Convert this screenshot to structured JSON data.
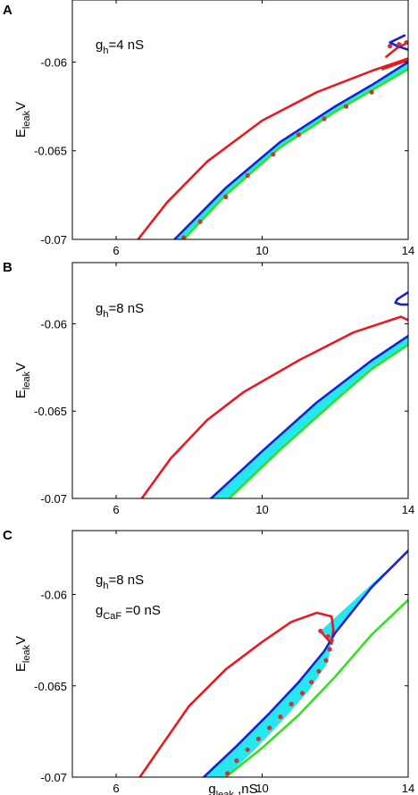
{
  "figure": {
    "panels": [
      "A",
      "B",
      "C"
    ]
  },
  "chart_data": [
    {
      "panel": "A",
      "type": "line",
      "annotations": [
        {
          "main": "g",
          "sub": "h",
          "rest": "=4 nS"
        }
      ],
      "ylabel": {
        "main": "E",
        "sub": "leak",
        "rest": "V"
      },
      "xlabel": null,
      "xlim": [
        4.8,
        14
      ],
      "ylim": [
        -0.07,
        -0.0565
      ],
      "xticks": [
        6,
        10,
        14
      ],
      "yticks": [
        -0.06,
        -0.065,
        -0.07
      ],
      "ytick_labels": [
        "-0.06",
        "-0.065",
        "-0.07"
      ],
      "colors": {
        "red": "#e8191f",
        "blue": "#1b21d1",
        "green": "#35e021",
        "fill": "#26e6ef",
        "dots": "#cc3333"
      },
      "band": {
        "upper": [
          [
            7.6,
            -0.07
          ],
          [
            9.0,
            -0.0671
          ],
          [
            10.5,
            -0.0645
          ],
          [
            12.0,
            -0.0625
          ],
          [
            13.0,
            -0.0613
          ],
          [
            14.0,
            -0.06
          ]
        ],
        "lower": [
          [
            7.85,
            -0.07
          ],
          [
            9.0,
            -0.0675
          ],
          [
            10.5,
            -0.0648
          ],
          [
            12.0,
            -0.0628
          ],
          [
            13.0,
            -0.0616
          ],
          [
            14.0,
            -0.0604
          ]
        ]
      },
      "series": [
        {
          "color": "red",
          "points": [
            [
              6.6,
              -0.07
            ],
            [
              7.4,
              -0.0679
            ],
            [
              8.5,
              -0.0656
            ],
            [
              10.0,
              -0.0633
            ],
            [
              11.5,
              -0.0617
            ],
            [
              13.0,
              -0.0605
            ],
            [
              14.0,
              -0.0598
            ]
          ]
        },
        {
          "color": "red",
          "points": [
            [
              13.4,
              -0.0597
            ],
            [
              13.7,
              -0.0592
            ],
            [
              14.0,
              -0.0589
            ]
          ]
        },
        {
          "color": "red",
          "points": [
            [
              13.3,
              -0.0604
            ],
            [
              13.7,
              -0.0601
            ],
            [
              14.0,
              -0.0599
            ]
          ]
        },
        {
          "color": "blue",
          "points": [
            [
              13.9,
              -0.0585
            ],
            [
              13.7,
              -0.0587
            ],
            [
              13.5,
              -0.0589
            ],
            [
              13.7,
              -0.0591
            ],
            [
              14.0,
              -0.0593
            ]
          ]
        },
        {
          "color": "blue",
          "points": [
            [
              7.6,
              -0.07
            ],
            [
              9.0,
              -0.0671
            ],
            [
              10.5,
              -0.0645
            ],
            [
              12.0,
              -0.0625
            ],
            [
              13.0,
              -0.0613
            ],
            [
              14.0,
              -0.06
            ]
          ]
        },
        {
          "color": "green",
          "points": [
            [
              7.85,
              -0.07
            ],
            [
              9.0,
              -0.0675
            ],
            [
              10.5,
              -0.0648
            ],
            [
              12.0,
              -0.0628
            ],
            [
              13.0,
              -0.0616
            ],
            [
              14.0,
              -0.0604
            ]
          ]
        }
      ],
      "markers": [
        [
          7.85,
          -0.0699
        ],
        [
          8.3,
          -0.069
        ],
        [
          9.0,
          -0.0676
        ],
        [
          9.6,
          -0.0664
        ],
        [
          10.3,
          -0.0652
        ],
        [
          11.0,
          -0.0641
        ],
        [
          11.7,
          -0.0632
        ],
        [
          12.3,
          -0.0625
        ],
        [
          13.0,
          -0.0617
        ],
        [
          13.5,
          -0.0591
        ],
        [
          13.75,
          -0.059
        ],
        [
          13.95,
          -0.0589
        ]
      ]
    },
    {
      "panel": "B",
      "type": "line",
      "annotations": [
        {
          "main": "g",
          "sub": "h",
          "rest": "=8 nS"
        }
      ],
      "ylabel": {
        "main": "E",
        "sub": "leak",
        "rest": "V"
      },
      "xlabel": null,
      "xlim": [
        4.8,
        14
      ],
      "ylim": [
        -0.07,
        -0.0565
      ],
      "xticks": [
        6,
        10,
        14
      ],
      "yticks": [
        -0.06,
        -0.065,
        -0.07
      ],
      "ytick_labels": [
        "-0.06",
        "-0.065",
        "-0.07"
      ],
      "colors": {
        "red": "#e8191f",
        "blue": "#1b21d1",
        "green": "#35e021",
        "fill": "#26e6ef",
        "dots": "#cc3333"
      },
      "band": {
        "upper": [
          [
            8.6,
            -0.07
          ],
          [
            10.0,
            -0.0673
          ],
          [
            11.5,
            -0.0645
          ],
          [
            13.0,
            -0.0621
          ],
          [
            14.0,
            -0.0607
          ]
        ],
        "lower": [
          [
            9.1,
            -0.07
          ],
          [
            10.5,
            -0.0672
          ],
          [
            12.0,
            -0.0644
          ],
          [
            13.0,
            -0.0626
          ],
          [
            14.0,
            -0.0612
          ]
        ]
      },
      "series": [
        {
          "color": "red",
          "points": [
            [
              6.7,
              -0.07
            ],
            [
              7.5,
              -0.0677
            ],
            [
              8.5,
              -0.0655
            ],
            [
              9.5,
              -0.0639
            ],
            [
              11.0,
              -0.0621
            ],
            [
              12.5,
              -0.0605
            ],
            [
              13.8,
              -0.0596
            ],
            [
              14.0,
              -0.0598
            ]
          ]
        },
        {
          "color": "blue",
          "points": [
            [
              14.0,
              -0.0582
            ],
            [
              13.7,
              -0.0586
            ],
            [
              13.65,
              -0.0588
            ],
            [
              13.8,
              -0.0589
            ],
            [
              14.0,
              -0.0589
            ]
          ]
        },
        {
          "color": "blue",
          "points": [
            [
              8.6,
              -0.07
            ],
            [
              10.0,
              -0.0673
            ],
            [
              11.5,
              -0.0645
            ],
            [
              13.0,
              -0.0621
            ],
            [
              14.0,
              -0.0607
            ]
          ]
        },
        {
          "color": "green",
          "points": [
            [
              9.1,
              -0.07
            ],
            [
              10.5,
              -0.0672
            ],
            [
              12.0,
              -0.0644
            ],
            [
              13.0,
              -0.0626
            ],
            [
              14.0,
              -0.0612
            ]
          ]
        }
      ],
      "markers": []
    },
    {
      "panel": "C",
      "type": "line",
      "annotations": [
        {
          "main": "g",
          "sub": "h",
          "rest": "=8 nS"
        },
        {
          "main": "g",
          "sub": "CaF",
          "rest": " =0 nS"
        }
      ],
      "ylabel": {
        "main": "E",
        "sub": "leak",
        "rest": "V"
      },
      "xlabel": {
        "main": "g",
        "sub": "leak",
        "rest": " ,nS"
      },
      "xlim": [
        4.8,
        14
      ],
      "ylim": [
        -0.07,
        -0.0565
      ],
      "xticks": [
        6,
        10,
        14
      ],
      "yticks": [
        -0.06,
        -0.065,
        -0.07
      ],
      "ytick_labels": [
        "-0.06",
        "-0.065",
        "-0.07"
      ],
      "colors": {
        "red": "#e8191f",
        "blue": "#1b21d1",
        "green": "#35e021",
        "fill": "#26e6ef",
        "dots": "#cc3333"
      },
      "band": {
        "upper": [
          [
            8.4,
            -0.07
          ],
          [
            9.3,
            -0.0683
          ],
          [
            10.2,
            -0.0665
          ],
          [
            11.0,
            -0.0648
          ],
          [
            11.7,
            -0.0631
          ],
          [
            12.0,
            -0.0621
          ],
          [
            13.0,
            -0.0596
          ],
          [
            14.0,
            -0.0576
          ]
        ],
        "lower": [
          [
            9.0,
            -0.07
          ],
          [
            9.8,
            -0.0685
          ],
          [
            10.6,
            -0.0668
          ],
          [
            11.3,
            -0.0652
          ],
          [
            11.8,
            -0.0637
          ],
          [
            11.9,
            -0.0625
          ],
          [
            11.75,
            -0.0622
          ],
          [
            11.6,
            -0.062
          ]
        ]
      },
      "series": [
        {
          "color": "red",
          "points": [
            [
              6.65,
              -0.07
            ],
            [
              7.2,
              -0.0684
            ],
            [
              8.0,
              -0.0661
            ],
            [
              9.0,
              -0.0641
            ],
            [
              10.0,
              -0.0626
            ],
            [
              10.8,
              -0.0615
            ],
            [
              11.5,
              -0.061
            ],
            [
              11.9,
              -0.0612
            ],
            [
              11.95,
              -0.0619
            ],
            [
              11.9,
              -0.0627
            ],
            [
              11.6,
              -0.062
            ]
          ]
        },
        {
          "color": "blue",
          "points": [
            [
              8.4,
              -0.07
            ],
            [
              9.3,
              -0.0683
            ],
            [
              10.2,
              -0.0665
            ],
            [
              11.0,
              -0.0648
            ],
            [
              11.7,
              -0.0631
            ],
            [
              12.0,
              -0.0621
            ],
            [
              13.0,
              -0.0596
            ],
            [
              14.0,
              -0.0576
            ]
          ]
        },
        {
          "color": "green",
          "points": [
            [
              9.0,
              -0.07
            ],
            [
              10.0,
              -0.0684
            ],
            [
              11.0,
              -0.0666
            ],
            [
              12.0,
              -0.0645
            ],
            [
              13.0,
              -0.0622
            ],
            [
              14.0,
              -0.0603
            ]
          ]
        }
      ],
      "markers": [
        [
          9.05,
          -0.0698
        ],
        [
          9.3,
          -0.0691
        ],
        [
          9.6,
          -0.0685
        ],
        [
          9.9,
          -0.0679
        ],
        [
          10.2,
          -0.0673
        ],
        [
          10.5,
          -0.0667
        ],
        [
          10.8,
          -0.066
        ],
        [
          11.1,
          -0.0654
        ],
        [
          11.35,
          -0.0648
        ],
        [
          11.55,
          -0.0642
        ],
        [
          11.75,
          -0.0636
        ],
        [
          11.85,
          -0.063
        ],
        [
          11.9,
          -0.0625
        ],
        [
          11.6,
          -0.062
        ],
        [
          11.8,
          -0.0623
        ]
      ]
    }
  ]
}
